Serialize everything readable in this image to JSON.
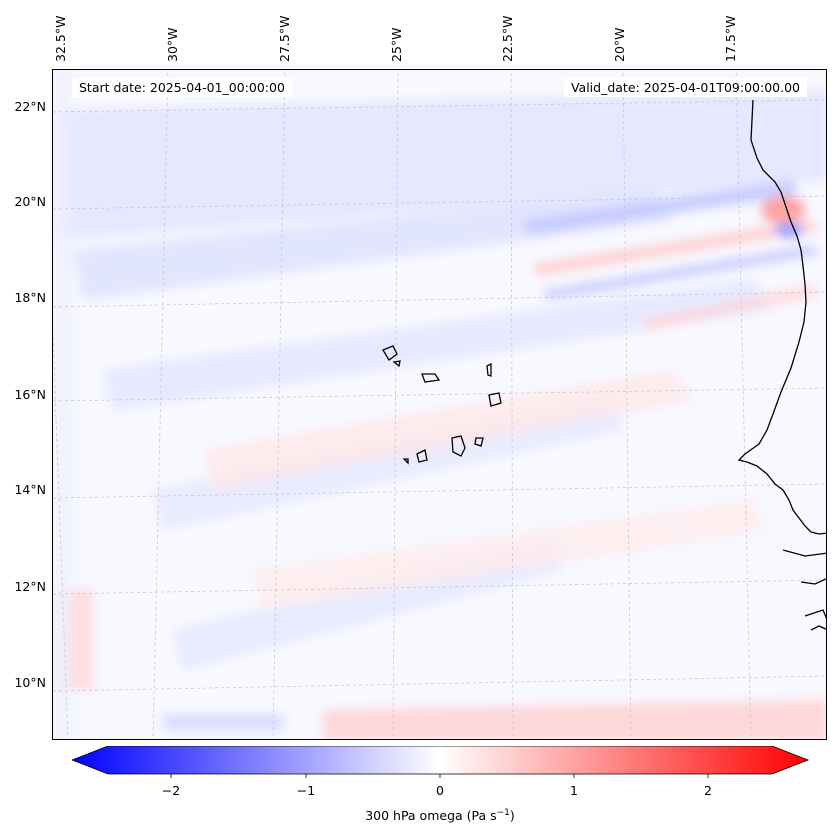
{
  "map": {
    "start_label": "Start date: 2025-04-01_00:00:00",
    "valid_label": "Valid_date: 2025-04-01T09:00:00.00",
    "lon_labels": [
      "32.5°W",
      "30°W",
      "27.5°W",
      "25°W",
      "22.5°W",
      "20°W",
      "17.5°W"
    ],
    "lat_labels": [
      "22°N",
      "20°N",
      "18°N",
      "16°N",
      "14°N",
      "12°N",
      "10°N"
    ],
    "colors": {
      "negative": "#0000ff",
      "neutral": "#ffffff",
      "positive": "#ff0000",
      "gridline": "#c8c8c8",
      "coast": "#000000"
    }
  },
  "colorbar": {
    "label_prefix": "300 hPa omega (Pa s",
    "label_exponent": "−1",
    "label_suffix": ")",
    "tick_labels": [
      "−2",
      "−1",
      "0",
      "1",
      "2"
    ],
    "range": [
      -2.6,
      2.6
    ]
  }
}
